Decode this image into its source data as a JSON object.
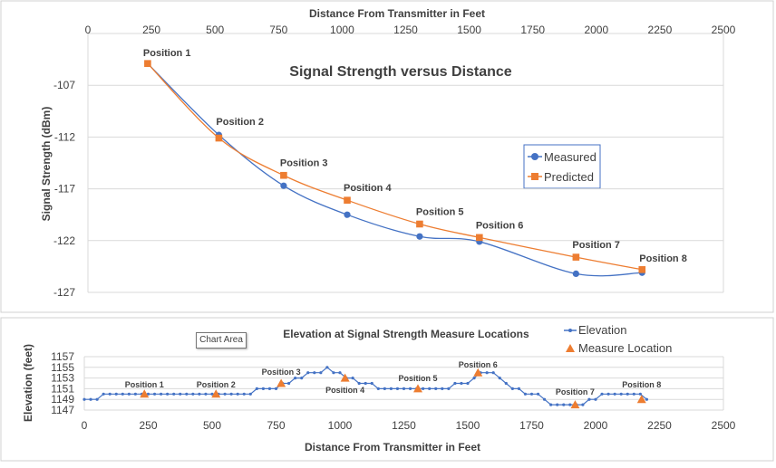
{
  "colors": {
    "measured": "#4472C4",
    "predicted": "#ED7D31",
    "elevation": "#4472C4",
    "measure_location": "#ED7D31",
    "grid": "#D9D9D9",
    "text": "#404040"
  },
  "tooltip": "Chart Area",
  "chart_data": [
    {
      "type": "line",
      "title": "Signal Strength versus Distance",
      "xlabel": "Distance From Transmitter in Feet",
      "ylabel": "Signal Strength (dBm)",
      "xlim": [
        0,
        2500
      ],
      "ylim": [
        -127,
        -102
      ],
      "xticks": [
        0,
        250,
        500,
        750,
        1000,
        1250,
        1500,
        1750,
        2000,
        2250,
        2500
      ],
      "yticks": [
        -107,
        -112,
        -117,
        -122,
        -127
      ],
      "x_axis_position": "top",
      "grid": true,
      "legend_position": "right",
      "series": [
        {
          "name": "Measured",
          "marker": "circle",
          "color": "#4472C4",
          "points": [
            [
              235,
              -104.9
            ],
            [
              515,
              -111.8
            ],
            [
              770,
              -116.7
            ],
            [
              1020,
              -119.5
            ],
            [
              1305,
              -121.6
            ],
            [
              1540,
              -122.1
            ],
            [
              1920,
              -125.2
            ],
            [
              2180,
              -125.1
            ]
          ]
        },
        {
          "name": "Predicted",
          "marker": "square",
          "color": "#ED7D31",
          "points": [
            [
              235,
              -104.9
            ],
            [
              515,
              -112.1
            ],
            [
              770,
              -115.7
            ],
            [
              1020,
              -118.1
            ],
            [
              1305,
              -120.4
            ],
            [
              1540,
              -121.7
            ],
            [
              1920,
              -123.6
            ],
            [
              2180,
              -124.8
            ]
          ]
        }
      ],
      "annotations": [
        {
          "text": "Position 1",
          "x": 235,
          "y": -104.9
        },
        {
          "text": "Position 2",
          "x": 515,
          "y": -111.8
        },
        {
          "text": "Position 3",
          "x": 770,
          "y": -115.7
        },
        {
          "text": "Position 4",
          "x": 1020,
          "y": -118.1
        },
        {
          "text": "Position 5",
          "x": 1305,
          "y": -120.4
        },
        {
          "text": "Position 6",
          "x": 1540,
          "y": -121.7
        },
        {
          "text": "Position 7",
          "x": 1920,
          "y": -123.6
        },
        {
          "text": "Position 8",
          "x": 2180,
          "y": -124.8
        }
      ]
    },
    {
      "type": "line",
      "title": "Elevation at Signal Strength Measure Locations",
      "xlabel": "Distance From Transmitter in Feet",
      "ylabel": "Elevation (feet)",
      "xlim": [
        0,
        2500
      ],
      "ylim": [
        1147,
        1157
      ],
      "xticks": [
        0,
        250,
        500,
        750,
        1000,
        1250,
        1500,
        1750,
        2000,
        2250,
        2500
      ],
      "yticks": [
        1147,
        1149,
        1151,
        1153,
        1155,
        1157
      ],
      "grid": true,
      "legend_position": "top-right",
      "series": [
        {
          "name": "Elevation",
          "marker": "small-circle",
          "color": "#4472C4",
          "x_start": 0,
          "x_step": 25,
          "values": [
            1149,
            1149,
            1149,
            1150,
            1150,
            1150,
            1150,
            1150,
            1150,
            1150,
            1150,
            1150,
            1150,
            1150,
            1150,
            1150,
            1150,
            1150,
            1150,
            1150,
            1150,
            1150,
            1150,
            1150,
            1150,
            1150,
            1150,
            1151,
            1151,
            1151,
            1151,
            1152,
            1152,
            1153,
            1153,
            1154,
            1154,
            1154,
            1155,
            1154,
            1154,
            1153,
            1153,
            1152,
            1152,
            1152,
            1151,
            1151,
            1151,
            1151,
            1151,
            1151,
            1151,
            1151,
            1151,
            1151,
            1151,
            1151,
            1152,
            1152,
            1152,
            1153,
            1154,
            1154,
            1154,
            1153,
            1152,
            1151,
            1151,
            1150,
            1150,
            1150,
            1149,
            1148,
            1148,
            1148,
            1148,
            1148,
            1148,
            1149,
            1149,
            1150,
            1150,
            1150,
            1150,
            1150,
            1150,
            1150,
            1149
          ]
        },
        {
          "name": "Measure Location",
          "marker": "triangle",
          "color": "#ED7D31",
          "points": [
            [
              235,
              1150
            ],
            [
              515,
              1150
            ],
            [
              770,
              1152
            ],
            [
              1020,
              1153
            ],
            [
              1305,
              1151
            ],
            [
              1540,
              1154
            ],
            [
              1920,
              1148
            ],
            [
              2180,
              1149
            ]
          ]
        }
      ],
      "annotations": [
        {
          "text": "Position 1",
          "x": 235
        },
        {
          "text": "Position 2",
          "x": 515
        },
        {
          "text": "Position 3",
          "x": 770
        },
        {
          "text": "Position 4",
          "x": 1020
        },
        {
          "text": "Position 5",
          "x": 1305
        },
        {
          "text": "Position 6",
          "x": 1540
        },
        {
          "text": "Position 7",
          "x": 1920
        },
        {
          "text": "Position 8",
          "x": 2180
        }
      ]
    }
  ]
}
